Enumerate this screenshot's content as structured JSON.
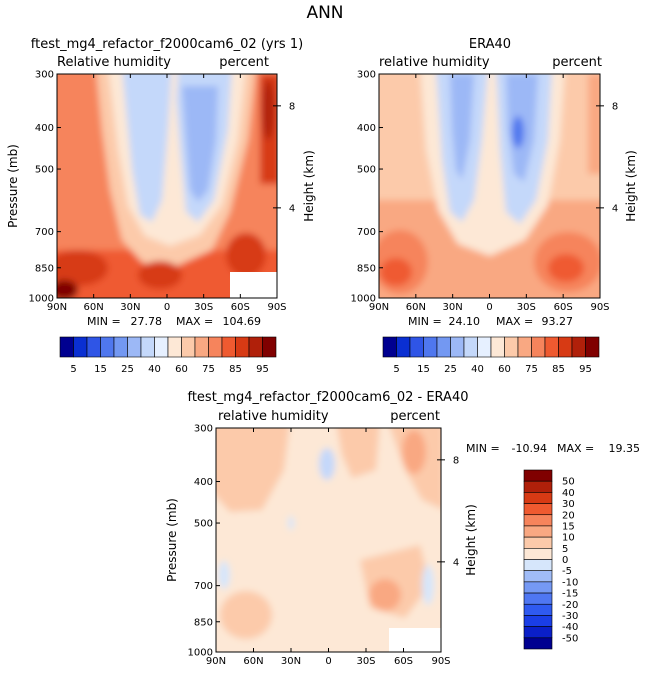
{
  "figure_title": "ANN",
  "chart_data": [
    {
      "type": "heatmap",
      "title": "ftest_mg4_refactor_f2000cam6_02 (yrs 1)",
      "left_subtitle": "Relative humidity",
      "right_subtitle": "percent",
      "xlabel": "",
      "ylabel": "Pressure (mb)",
      "y2label": "Height (km)",
      "x_ticks": [
        "90N",
        "60N",
        "30N",
        "0",
        "30S",
        "60S",
        "90S"
      ],
      "y_ticks": [
        "300",
        "400",
        "500",
        "700",
        "850",
        "1000"
      ],
      "y_tick_values": [
        300,
        400,
        500,
        700,
        850,
        1000
      ],
      "y2_ticks": [
        "8",
        "4"
      ],
      "y2_tick_pressures": [
        356,
        616
      ],
      "xlim": [
        90,
        -90
      ],
      "ylim": [
        1000,
        300
      ],
      "y_scale": "log-pressure",
      "min_label": "MIN =",
      "min_value": "27.78",
      "max_label": "MAX =",
      "max_value": "104.69",
      "colorbar": {
        "orientation": "horizontal",
        "levels": [
          5,
          10,
          15,
          20,
          25,
          30,
          40,
          50,
          60,
          70,
          75,
          80,
          85,
          90,
          95
        ],
        "labels": [
          "5",
          "15",
          "25",
          "40",
          "60",
          "75",
          "85",
          "95"
        ],
        "colors": [
          "#000090",
          "#0a2fd2",
          "#2f55e6",
          "#4f77ee",
          "#7398f2",
          "#9cb8f6",
          "#c4d8fa",
          "#e6f0ff",
          "#fde8d6",
          "#fccaaa",
          "#f9a882",
          "#f6845c",
          "#ef5a30",
          "#d73a14",
          "#b0200a",
          "#800000"
        ]
      }
    },
    {
      "type": "heatmap",
      "title": "ERA40",
      "left_subtitle": "relative humidity",
      "right_subtitle": "percent",
      "xlabel": "",
      "ylabel": "",
      "y2label": "Height (km)",
      "x_ticks": [
        "90N",
        "60N",
        "30N",
        "0",
        "30S",
        "60S",
        "90S"
      ],
      "y_ticks": [
        "300",
        "400",
        "500",
        "700",
        "850",
        "1000"
      ],
      "y_tick_values": [
        300,
        400,
        500,
        700,
        850,
        1000
      ],
      "y2_ticks": [
        "8",
        "4"
      ],
      "y2_tick_pressures": [
        356,
        616
      ],
      "xlim": [
        90,
        -90
      ],
      "ylim": [
        1000,
        300
      ],
      "y_scale": "log-pressure",
      "min_label": "MIN =",
      "min_value": "24.10",
      "max_label": "MAX =",
      "max_value": "93.27",
      "colorbar": {
        "orientation": "horizontal",
        "levels": [
          5,
          10,
          15,
          20,
          25,
          30,
          40,
          50,
          60,
          70,
          75,
          80,
          85,
          90,
          95
        ],
        "labels": [
          "5",
          "15",
          "25",
          "40",
          "60",
          "75",
          "85",
          "95"
        ],
        "colors": [
          "#000090",
          "#0a2fd2",
          "#2f55e6",
          "#4f77ee",
          "#7398f2",
          "#9cb8f6",
          "#c4d8fa",
          "#e6f0ff",
          "#fde8d6",
          "#fccaaa",
          "#f9a882",
          "#f6845c",
          "#ef5a30",
          "#d73a14",
          "#b0200a",
          "#800000"
        ]
      }
    },
    {
      "type": "heatmap",
      "title": "ftest_mg4_refactor_f2000cam6_02 - ERA40",
      "left_subtitle": "relative humidity",
      "right_subtitle": "percent",
      "xlabel": "",
      "ylabel": "Pressure (mb)",
      "y2label": "Height (km)",
      "x_ticks": [
        "90N",
        "60N",
        "30N",
        "0",
        "30S",
        "60S",
        "90S"
      ],
      "y_ticks": [
        "300",
        "400",
        "500",
        "700",
        "850",
        "1000"
      ],
      "y_tick_values": [
        300,
        400,
        500,
        700,
        850,
        1000
      ],
      "y2_ticks": [
        "8",
        "4"
      ],
      "y2_tick_pressures": [
        356,
        616
      ],
      "xlim": [
        90,
        -90
      ],
      "ylim": [
        1000,
        300
      ],
      "y_scale": "log-pressure",
      "min_label": "MIN =",
      "min_value": "-10.94",
      "max_label": "MAX =",
      "max_value": "19.35",
      "colorbar": {
        "orientation": "vertical",
        "levels": [
          -50,
          -40,
          -30,
          -20,
          -15,
          -10,
          -5,
          0,
          5,
          10,
          15,
          20,
          30,
          40,
          50
        ],
        "labels": [
          "50",
          "40",
          "30",
          "20",
          "15",
          "10",
          "5",
          "0",
          "-5",
          "-10",
          "-15",
          "-20",
          "-30",
          "-40",
          "-50"
        ],
        "colors": [
          "#000090",
          "#0a1fc8",
          "#1a3ee6",
          "#2f5af0",
          "#4f77f2",
          "#7599f4",
          "#a0bcf7",
          "#d6e6fb",
          "#fde8d6",
          "#fccaaa",
          "#f9a882",
          "#f6845c",
          "#ef5a30",
          "#d73a14",
          "#b0200a",
          "#800000"
        ]
      }
    }
  ]
}
